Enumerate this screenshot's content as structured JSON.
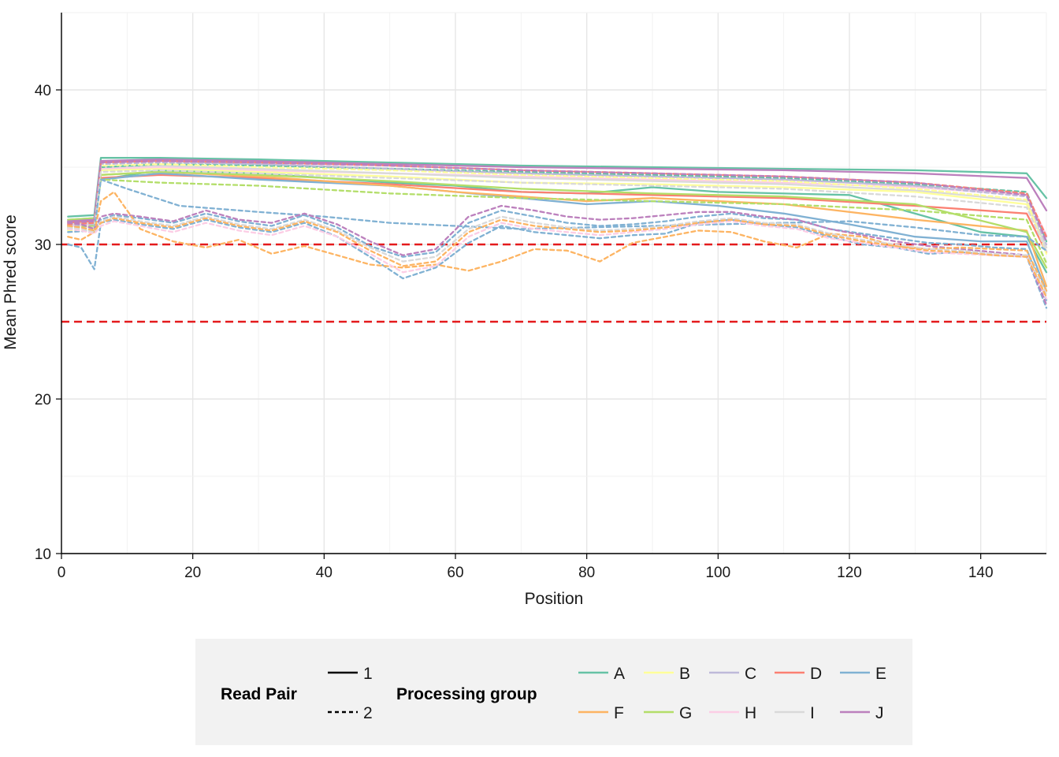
{
  "chart_data": {
    "type": "line",
    "title": "",
    "xlabel": "Position",
    "ylabel": "Mean Phred score",
    "xlim": [
      0,
      150
    ],
    "ylim": [
      10,
      45
    ],
    "x_ticks": [
      0,
      20,
      40,
      60,
      80,
      100,
      120,
      140
    ],
    "y_ticks": [
      10,
      20,
      30,
      40
    ],
    "grid": true,
    "reference_lines": [
      {
        "y": 30,
        "color": "#e41a1c",
        "style": "dashed"
      },
      {
        "y": 25,
        "color": "#e41a1c",
        "style": "dashed"
      }
    ],
    "legend": {
      "position": "bottom",
      "read_pair_title": "Read Pair",
      "read_pair_items": [
        {
          "label": "1",
          "style": "solid"
        },
        {
          "label": "2",
          "style": "dashed"
        }
      ],
      "group_title": "Processing group",
      "group_items": [
        {
          "label": "A",
          "color": "#66c2a5"
        },
        {
          "label": "B",
          "color": "#ffff99"
        },
        {
          "label": "C",
          "color": "#bebada"
        },
        {
          "label": "D",
          "color": "#fb8072"
        },
        {
          "label": "E",
          "color": "#80b1d3"
        },
        {
          "label": "F",
          "color": "#fdb462"
        },
        {
          "label": "G",
          "color": "#b3de69"
        },
        {
          "label": "H",
          "color": "#fccde5"
        },
        {
          "label": "I",
          "color": "#d9d9d9"
        },
        {
          "label": "J",
          "color": "#bc80bd"
        }
      ]
    },
    "series": [
      {
        "group": "A",
        "read_pair": "1",
        "color": "#66c2a5",
        "x": [
          1,
          5,
          6,
          15,
          30,
          50,
          70,
          90,
          110,
          130,
          147,
          150
        ],
        "y": [
          31.8,
          31.9,
          35.6,
          35.6,
          35.5,
          35.3,
          35.1,
          35.0,
          34.9,
          34.8,
          34.6,
          33.0
        ]
      },
      {
        "group": "A",
        "read_pair": "1",
        "color": "#66c2a5",
        "x": [
          1,
          5,
          6,
          15,
          30,
          50,
          60,
          70,
          80,
          90,
          100,
          120,
          140,
          147,
          150
        ],
        "y": [
          31.5,
          31.6,
          34.2,
          34.8,
          34.6,
          34.0,
          33.8,
          33.4,
          33.3,
          33.7,
          33.4,
          33.2,
          30.8,
          30.5,
          28.2
        ]
      },
      {
        "group": "B",
        "read_pair": "1",
        "color": "#ffff99",
        "x": [
          1,
          5,
          6,
          15,
          30,
          50,
          70,
          90,
          110,
          130,
          147,
          150
        ],
        "y": [
          31.3,
          31.4,
          34.8,
          34.9,
          34.7,
          34.4,
          34.0,
          33.9,
          33.7,
          33.4,
          32.6,
          29.8
        ]
      },
      {
        "group": "C",
        "read_pair": "1",
        "color": "#bebada",
        "x": [
          1,
          5,
          6,
          15,
          30,
          50,
          70,
          90,
          110,
          130,
          147,
          150
        ],
        "y": [
          31.5,
          31.6,
          35.3,
          35.4,
          35.2,
          34.9,
          34.6,
          34.4,
          34.2,
          33.8,
          33.2,
          30.5
        ]
      },
      {
        "group": "D",
        "read_pair": "1",
        "color": "#fb8072",
        "x": [
          1,
          5,
          6,
          15,
          30,
          50,
          70,
          90,
          110,
          130,
          147,
          150
        ],
        "y": [
          31.4,
          31.5,
          34.3,
          34.5,
          34.3,
          33.9,
          33.4,
          33.2,
          33.0,
          32.5,
          32.0,
          29.5
        ]
      },
      {
        "group": "E",
        "read_pair": "1",
        "color": "#80b1d3",
        "x": [
          1,
          5,
          6,
          15,
          30,
          50,
          60,
          70,
          80,
          90,
          100,
          110,
          120,
          130,
          140,
          147,
          150
        ],
        "y": [
          31.6,
          31.7,
          34.2,
          34.6,
          34.2,
          33.8,
          33.4,
          33.0,
          32.6,
          32.8,
          32.5,
          32.0,
          31.3,
          30.5,
          30.2,
          30.2,
          27.0
        ]
      },
      {
        "group": "F",
        "read_pair": "1",
        "color": "#fdb462",
        "x": [
          1,
          5,
          6,
          15,
          30,
          50,
          60,
          70,
          80,
          90,
          110,
          130,
          147,
          150
        ],
        "y": [
          31.2,
          31.3,
          34.5,
          34.7,
          34.4,
          33.8,
          33.4,
          33.1,
          32.8,
          33.0,
          32.6,
          31.6,
          30.9,
          27.3
        ]
      },
      {
        "group": "G",
        "read_pair": "1",
        "color": "#b3de69",
        "x": [
          1,
          5,
          6,
          15,
          30,
          50,
          70,
          90,
          110,
          130,
          147,
          150
        ],
        "y": [
          31.6,
          31.7,
          34.5,
          34.7,
          34.5,
          34.1,
          33.6,
          33.3,
          33.1,
          32.6,
          30.8,
          28.5
        ]
      },
      {
        "group": "H",
        "read_pair": "1",
        "color": "#fccde5",
        "x": [
          1,
          5,
          6,
          15,
          30,
          50,
          70,
          90,
          110,
          130,
          147,
          150
        ],
        "y": [
          31.2,
          31.3,
          34.9,
          35.0,
          34.8,
          34.6,
          34.4,
          34.2,
          34.0,
          33.7,
          33.2,
          30.6
        ]
      },
      {
        "group": "I",
        "read_pair": "1",
        "color": "#d9d9d9",
        "x": [
          1,
          5,
          6,
          15,
          30,
          50,
          70,
          90,
          110,
          130,
          147,
          150
        ],
        "y": [
          31.3,
          31.4,
          35.0,
          35.1,
          34.9,
          34.6,
          34.3,
          34.1,
          33.9,
          33.5,
          32.8,
          29.8
        ]
      },
      {
        "group": "J",
        "read_pair": "1",
        "color": "#bc80bd",
        "x": [
          1,
          5,
          6,
          15,
          30,
          50,
          70,
          90,
          110,
          130,
          147,
          150
        ],
        "y": [
          31.5,
          31.6,
          35.4,
          35.5,
          35.4,
          35.2,
          35.0,
          34.9,
          34.8,
          34.6,
          34.3,
          32.2
        ]
      },
      {
        "group": "A",
        "read_pair": "2",
        "color": "#66c2a5",
        "x": [
          1,
          5,
          6,
          15,
          30,
          50,
          70,
          90,
          110,
          130,
          147,
          150
        ],
        "y": [
          31.0,
          31.2,
          35.0,
          35.2,
          35.1,
          34.9,
          34.7,
          34.5,
          34.3,
          33.9,
          33.4,
          30.2
        ]
      },
      {
        "group": "B",
        "read_pair": "2",
        "color": "#ffff99",
        "x": [
          1,
          5,
          6,
          15,
          30,
          50,
          70,
          90,
          110,
          130,
          147,
          150
        ],
        "y": [
          30.9,
          31.0,
          35.1,
          35.2,
          35.0,
          34.8,
          34.5,
          34.3,
          34.1,
          33.6,
          32.9,
          29.4
        ]
      },
      {
        "group": "C",
        "read_pair": "2",
        "color": "#bebada",
        "x": [
          1,
          5,
          6,
          15,
          30,
          50,
          70,
          90,
          110,
          130,
          147,
          150
        ],
        "y": [
          31.2,
          31.3,
          35.2,
          35.3,
          35.2,
          34.9,
          34.6,
          34.4,
          34.2,
          33.8,
          33.1,
          30.0
        ]
      },
      {
        "group": "D",
        "read_pair": "2",
        "color": "#fb8072",
        "x": [
          1,
          5,
          6,
          15,
          30,
          50,
          70,
          90,
          110,
          130,
          147,
          150
        ],
        "y": [
          31.3,
          31.4,
          35.3,
          35.4,
          35.3,
          35.1,
          34.8,
          34.6,
          34.4,
          34.0,
          33.3,
          30.5
        ]
      },
      {
        "group": "G",
        "read_pair": "2",
        "color": "#b3de69",
        "x": [
          1,
          5,
          6,
          15,
          30,
          50,
          70,
          90,
          110,
          130,
          147,
          150
        ],
        "y": [
          31.1,
          31.2,
          34.2,
          34.0,
          33.8,
          33.3,
          33.0,
          32.8,
          32.6,
          32.2,
          31.6,
          28.8
        ]
      },
      {
        "group": "J",
        "read_pair": "2",
        "color": "#bc80bd",
        "x": [
          1,
          5,
          6,
          15,
          30,
          50,
          70,
          90,
          110,
          130,
          147,
          150
        ],
        "y": [
          31.4,
          31.5,
          35.3,
          35.4,
          35.3,
          35.1,
          34.8,
          34.6,
          34.4,
          34.0,
          33.2,
          30.2
        ]
      },
      {
        "group": "I",
        "read_pair": "2",
        "color": "#d9d9d9",
        "x": [
          1,
          5,
          6,
          15,
          30,
          50,
          70,
          90,
          110,
          130,
          147,
          150
        ],
        "y": [
          31.0,
          31.1,
          34.7,
          34.8,
          34.6,
          34.3,
          34.0,
          33.8,
          33.6,
          33.1,
          32.4,
          29.6
        ]
      },
      {
        "group": "E",
        "read_pair": "2",
        "color": "#80b1d3",
        "x": [
          1,
          5,
          6,
          10,
          18,
          30,
          40,
          50,
          60,
          70,
          80,
          90,
          100,
          110,
          120,
          130,
          140,
          147,
          150
        ],
        "y": [
          30.8,
          30.9,
          34.2,
          33.6,
          32.5,
          32.1,
          31.8,
          31.4,
          31.2,
          31.0,
          31.1,
          31.2,
          31.3,
          31.4,
          31.5,
          31.1,
          30.6,
          30.5,
          29.6
        ]
      },
      {
        "group": "E",
        "read_pair": "2",
        "color": "#80b1d3",
        "x": [
          1,
          3,
          5,
          6,
          8,
          12,
          17,
          22,
          27,
          32,
          37,
          42,
          47,
          52,
          57,
          62,
          67,
          72,
          77,
          82,
          87,
          92,
          97,
          102,
          107,
          112,
          117,
          122,
          127,
          132,
          137,
          142,
          147,
          150
        ],
        "y": [
          30.0,
          29.8,
          28.4,
          31.4,
          31.6,
          31.3,
          31.0,
          31.6,
          31.1,
          30.8,
          31.4,
          30.5,
          29.2,
          27.8,
          28.5,
          30.1,
          31.2,
          30.8,
          30.6,
          30.4,
          30.6,
          30.7,
          31.4,
          31.6,
          31.3,
          31.1,
          30.5,
          30.0,
          29.8,
          29.4,
          29.5,
          29.3,
          29.2,
          25.9
        ]
      },
      {
        "group": "E",
        "read_pair": "2",
        "color": "#80b1d3",
        "x": [
          1,
          3,
          5,
          6,
          8,
          12,
          17,
          22,
          27,
          32,
          37,
          42,
          47,
          52,
          57,
          62,
          67,
          72,
          77,
          82,
          87,
          92,
          97,
          102,
          107,
          112,
          117,
          122,
          127,
          132,
          137,
          142,
          147,
          150
        ],
        "y": [
          31.2,
          31.1,
          30.9,
          31.6,
          31.9,
          31.7,
          31.4,
          32.0,
          31.5,
          31.2,
          31.9,
          31.1,
          29.9,
          29.2,
          29.5,
          31.4,
          32.2,
          31.8,
          31.4,
          31.2,
          31.3,
          31.5,
          31.8,
          32.0,
          31.7,
          31.6,
          31.0,
          30.7,
          30.4,
          30.1,
          30.0,
          29.8,
          29.7,
          26.4
        ]
      },
      {
        "group": "J",
        "read_pair": "2",
        "color": "#bc80bd",
        "x": [
          1,
          3,
          5,
          6,
          8,
          12,
          17,
          22,
          27,
          32,
          37,
          42,
          47,
          52,
          57,
          62,
          67,
          72,
          77,
          82,
          87,
          92,
          97,
          102,
          107,
          112,
          117,
          122,
          127,
          132,
          137,
          142,
          147,
          150
        ],
        "y": [
          31.4,
          31.3,
          31.0,
          31.8,
          32.0,
          31.8,
          31.5,
          32.2,
          31.6,
          31.4,
          32.0,
          31.3,
          30.2,
          29.3,
          29.7,
          31.8,
          32.5,
          32.2,
          31.8,
          31.6,
          31.7,
          31.9,
          32.1,
          32.1,
          31.8,
          31.6,
          31.0,
          30.6,
          30.2,
          29.9,
          29.7,
          29.5,
          29.3,
          26.1
        ]
      },
      {
        "group": "F",
        "read_pair": "2",
        "color": "#fdb462",
        "x": [
          1,
          3,
          5,
          6,
          8,
          12,
          17,
          22,
          27,
          32,
          37,
          42,
          47,
          52,
          57,
          62,
          67,
          72,
          77,
          82,
          87,
          92,
          97,
          102,
          107,
          112,
          117,
          122,
          127,
          132,
          137,
          142,
          147,
          150
        ],
        "y": [
          30.5,
          30.3,
          30.8,
          32.8,
          33.4,
          31.0,
          30.2,
          29.8,
          30.3,
          29.4,
          29.9,
          29.3,
          28.7,
          28.5,
          28.7,
          28.3,
          28.9,
          29.7,
          29.6,
          28.9,
          30.1,
          30.5,
          30.9,
          30.8,
          30.2,
          29.8,
          30.7,
          30.5,
          29.9,
          29.7,
          29.8,
          29.7,
          29.6,
          27.0
        ]
      },
      {
        "group": "H",
        "read_pair": "2",
        "color": "#fccde5",
        "x": [
          1,
          3,
          5,
          6,
          8,
          12,
          17,
          22,
          27,
          32,
          37,
          42,
          47,
          52,
          57,
          62,
          67,
          72,
          77,
          82,
          87,
          92,
          97,
          102,
          107,
          112,
          117,
          122,
          127,
          132,
          137,
          142,
          147,
          150
        ],
        "y": [
          31.0,
          30.9,
          30.7,
          31.2,
          31.5,
          31.2,
          30.8,
          31.4,
          30.9,
          30.6,
          31.2,
          30.5,
          29.4,
          28.2,
          28.6,
          30.5,
          31.4,
          31.0,
          30.8,
          30.6,
          30.8,
          31.0,
          31.3,
          31.5,
          31.2,
          31.0,
          30.4,
          30.1,
          29.8,
          29.5,
          29.4,
          29.3,
          29.2,
          26.5
        ]
      },
      {
        "group": "I",
        "read_pair": "2",
        "color": "#d9d9d9",
        "x": [
          1,
          3,
          5,
          6,
          8,
          12,
          17,
          22,
          27,
          32,
          37,
          42,
          47,
          52,
          57,
          62,
          67,
          72,
          77,
          82,
          87,
          92,
          97,
          102,
          107,
          112,
          117,
          122,
          127,
          132,
          137,
          142,
          147,
          150
        ],
        "y": [
          31.1,
          31.0,
          30.8,
          31.5,
          31.8,
          31.5,
          31.2,
          31.8,
          31.3,
          31.0,
          31.6,
          30.9,
          29.8,
          28.9,
          29.2,
          31.0,
          31.8,
          31.4,
          31.1,
          30.9,
          31.0,
          31.2,
          31.5,
          31.7,
          31.4,
          31.3,
          30.7,
          30.3,
          30.0,
          29.7,
          29.6,
          29.4,
          29.3,
          26.8
        ]
      },
      {
        "group": "F",
        "read_pair": "2",
        "color": "#fdb462",
        "x": [
          1,
          3,
          5,
          6,
          8,
          12,
          17,
          22,
          27,
          32,
          37,
          42,
          47,
          52,
          57,
          62,
          67,
          72,
          77,
          82,
          87,
          92,
          97,
          102,
          107,
          112,
          117,
          122,
          127,
          132,
          137,
          142,
          147,
          150
        ],
        "y": [
          31.2,
          31.1,
          30.9,
          31.4,
          31.7,
          31.4,
          31.1,
          31.7,
          31.2,
          30.9,
          31.5,
          30.8,
          29.6,
          28.6,
          28.9,
          30.8,
          31.6,
          31.2,
          31.0,
          30.8,
          30.9,
          31.1,
          31.4,
          31.6,
          31.3,
          31.2,
          30.6,
          30.2,
          29.9,
          29.6,
          29.5,
          29.3,
          29.2,
          26.6
        ]
      }
    ]
  }
}
